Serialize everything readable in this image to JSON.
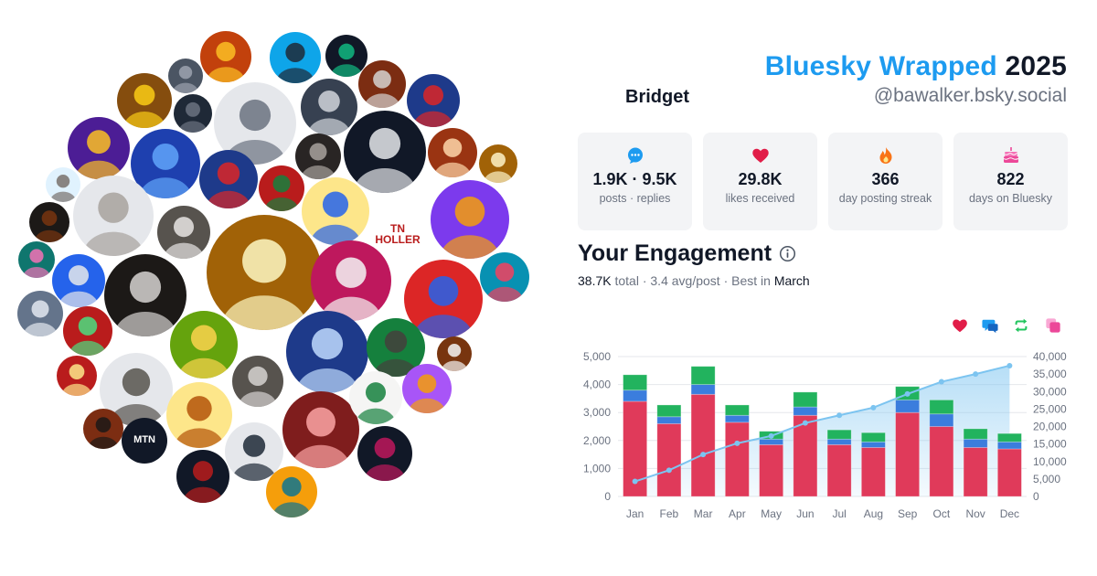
{
  "header": {
    "title_main": "Bluesky Wrapped",
    "title_year": "2025",
    "display_name": "Bridget",
    "handle": "@bawalker.bsky.social"
  },
  "avatar_cloud": {
    "avatars": [
      {
        "name": "avatar-pop-art-portrait",
        "bg": "#c2410c",
        "fg": "#fbbf24"
      },
      {
        "name": "avatar-woman-blue-sky",
        "bg": "#0ea5e9",
        "fg": "#1f2937"
      },
      {
        "name": "avatar-green-logo",
        "bg": "#111827",
        "fg": "#10b981"
      },
      {
        "name": "avatar-photo-dark",
        "bg": "#7c2d12",
        "fg": "#d6d3d1"
      },
      {
        "name": "avatar-man-sketch",
        "bg": "#4b5563",
        "fg": "#9ca3af"
      },
      {
        "name": "avatar-couple",
        "bg": "#854d0e",
        "fg": "#facc15"
      },
      {
        "name": "avatar-man-dark",
        "bg": "#1f2937",
        "fg": "#6b7280"
      },
      {
        "name": "avatar-politician",
        "bg": "#1e3a8a",
        "fg": "#dc2626"
      },
      {
        "name": "avatar-bw-portrait",
        "bg": "#e5e7eb",
        "fg": "#6b7280"
      },
      {
        "name": "avatar-man-hat",
        "bg": "#374151",
        "fg": "#d1d5db"
      },
      {
        "name": "avatar-bride-of-frankenstein",
        "bg": "#111827",
        "fg": "#e5e7eb"
      },
      {
        "name": "avatar-man-glasses",
        "bg": "#4c1d95",
        "fg": "#fbbf24"
      },
      {
        "name": "avatar-blue-portrait",
        "bg": "#1e40af",
        "fg": "#60a5fa"
      },
      {
        "name": "avatar-woman-dark",
        "bg": "#292524",
        "fg": "#a8a29e"
      },
      {
        "name": "avatar-man-smile",
        "bg": "#9a3412",
        "fg": "#fed7aa"
      },
      {
        "name": "avatar-cat",
        "bg": "#a16207",
        "fg": "#fef3c7"
      },
      {
        "name": "avatar-elder-man",
        "bg": "#e0f2fe",
        "fg": "#78716c"
      },
      {
        "name": "avatar-blonde-woman",
        "bg": "#e5e7eb",
        "fg": "#a8a29e"
      },
      {
        "name": "avatar-dead-logo-small",
        "bg": "#1e3a8a",
        "fg": "#dc2626"
      },
      {
        "name": "avatar-christmas",
        "bg": "#b91c1c",
        "fg": "#15803d"
      },
      {
        "name": "avatar-caricature",
        "bg": "#fde68a",
        "fg": "#2563eb"
      },
      {
        "name": "avatar-pride-dancer",
        "bg": "#7c3aed",
        "fg": "#f59e0b"
      },
      {
        "name": "avatar-bearded-man",
        "bg": "#1c1917",
        "fg": "#78350f"
      },
      {
        "name": "avatar-dog",
        "bg": "#57534e",
        "fg": "#e7e5e4"
      },
      {
        "name": "avatar-warrior-woman",
        "bg": "#a16207",
        "fg": "#fef9c3"
      },
      {
        "name": "avatar-tn-holler",
        "bg": "#ffffff",
        "fg": "#b91c1c",
        "text": "TN HOLLER"
      },
      {
        "name": "avatar-psychedelic-art",
        "bg": "#0f766e",
        "fg": "#f472b6"
      },
      {
        "name": "avatar-man-portrait",
        "bg": "#2563eb",
        "fg": "#e5e7eb"
      },
      {
        "name": "avatar-white-house",
        "bg": "#be185d",
        "fg": "#f5f5f4"
      },
      {
        "name": "avatar-steal-your-face",
        "bg": "#dc2626",
        "fg": "#2563eb"
      },
      {
        "name": "avatar-tie-dye-skull",
        "bg": "#0891b2",
        "fg": "#f43f5e"
      },
      {
        "name": "avatar-old-man",
        "bg": "#64748b",
        "fg": "#e2e8f0"
      },
      {
        "name": "avatar-actor",
        "bg": "#1c1917",
        "fg": "#d6d3d1"
      },
      {
        "name": "avatar-man-sunglasses",
        "bg": "#b91c1c",
        "fg": "#4ade80"
      },
      {
        "name": "avatar-bald-man",
        "bg": "#65a30d",
        "fg": "#fcd34d"
      },
      {
        "name": "avatar-ocean-wave",
        "bg": "#1e3a8a",
        "fg": "#bfdbfe"
      },
      {
        "name": "avatar-man-shades",
        "bg": "#15803d",
        "fg": "#44403c"
      },
      {
        "name": "avatar-rocker",
        "bg": "#78350f",
        "fg": "#f5f5f4"
      },
      {
        "name": "avatar-man-red-shirt",
        "bg": "#b91c1c",
        "fg": "#fde68a"
      },
      {
        "name": "avatar-older-man-gray",
        "bg": "#e5e7eb",
        "fg": "#57534e"
      },
      {
        "name": "avatar-woman-smiling",
        "bg": "#fde68a",
        "fg": "#b45309"
      },
      {
        "name": "avatar-poster-text",
        "bg": "#57534e",
        "fg": "#d6d3d1"
      },
      {
        "name": "avatar-bald-man-red",
        "bg": "#7f1d1d",
        "fg": "#fca5a5"
      },
      {
        "name": "avatar-fist-badge",
        "bg": "#f5f5f4",
        "fg": "#15803d"
      },
      {
        "name": "avatar-bearded-artist",
        "bg": "#a855f7",
        "fg": "#f59e0b"
      },
      {
        "name": "avatar-silhouette",
        "bg": "#7c2d12",
        "fg": "#1c1917"
      },
      {
        "name": "avatar-mtn",
        "bg": "#111827",
        "fg": "#ffffff",
        "text": "MTN"
      },
      {
        "name": "avatar-masks",
        "bg": "#e5e7eb",
        "fg": "#1f2937"
      },
      {
        "name": "avatar-woman-red",
        "bg": "#111827",
        "fg": "#be185d"
      },
      {
        "name": "avatar-guy-fawkes",
        "bg": "#111827",
        "fg": "#b91c1c"
      },
      {
        "name": "avatar-comic-woman",
        "bg": "#f59e0b",
        "fg": "#0e7490"
      },
      {
        "name": "avatar-cartoon-face",
        "bg": "#fde68a",
        "fg": "#1f2937"
      },
      {
        "name": "avatar-earth-hands",
        "bg": "#16a34a",
        "fg": "#2563eb"
      }
    ]
  },
  "stats": [
    {
      "name": "posts-replies-card",
      "icon": "speech-bubble-icon",
      "color": "#1d9bf0",
      "value": "1.9K · 9.5K",
      "label": "posts · replies"
    },
    {
      "name": "likes-received-card",
      "icon": "heart-icon",
      "color": "#e11d48",
      "value": "29.8K",
      "label": "likes received"
    },
    {
      "name": "posting-streak-card",
      "icon": "flame-icon",
      "color": "#f97316",
      "value": "366",
      "label": "day posting streak"
    },
    {
      "name": "days-on-bluesky-card",
      "icon": "cake-icon",
      "color": "#ec4899",
      "value": "822",
      "label": "days on Bluesky"
    }
  ],
  "engagement": {
    "title": "Your Engagement",
    "total": "38.7K",
    "total_suffix": "total ·",
    "avg": "3.4 avg/post",
    "best_prefix": "· Best in",
    "best_month": "March",
    "legend": [
      {
        "name": "likes-legend-icon",
        "icon": "heart-icon",
        "color": "#e11d48"
      },
      {
        "name": "replies-legend-icon",
        "icon": "reply-bubble-icon",
        "color": "#1d9bf0"
      },
      {
        "name": "reposts-legend-icon",
        "icon": "repost-icon",
        "color": "#22c55e"
      },
      {
        "name": "quotes-legend-icon",
        "icon": "quote-icon",
        "color": "#ec4899"
      }
    ]
  },
  "chart_data": {
    "type": "bar",
    "categories": [
      "Jan",
      "Feb",
      "Mar",
      "Apr",
      "May",
      "Jun",
      "Jul",
      "Aug",
      "Sep",
      "Oct",
      "Nov",
      "Dec"
    ],
    "series": [
      {
        "key": "likes",
        "color": "#e03a5a",
        "values": [
          3400,
          2600,
          3650,
          2650,
          1850,
          2900,
          1850,
          1750,
          3000,
          2500,
          1750,
          1700
        ]
      },
      {
        "key": "replies",
        "color": "#3b7ddd",
        "values": [
          400,
          250,
          350,
          250,
          200,
          300,
          200,
          200,
          450,
          450,
          300,
          250
        ]
      },
      {
        "key": "reposts",
        "color": "#22b35e",
        "values": [
          550,
          420,
          650,
          370,
          280,
          530,
          330,
          330,
          480,
          500,
          370,
          300
        ]
      }
    ],
    "cumulative": {
      "axis": "right",
      "values": [
        4300,
        7500,
        12000,
        15200,
        17300,
        21000,
        23200,
        25400,
        29300,
        32800,
        35000,
        37400
      ]
    },
    "ylim": [
      0,
      5000
    ],
    "yticks": [
      "0",
      "1,000",
      "2,000",
      "3,000",
      "4,000",
      "5,000"
    ],
    "y2lim": [
      0,
      40000
    ],
    "y2ticks": [
      "0",
      "5,000",
      "10,000",
      "15,000",
      "20,000",
      "25,000",
      "30,000",
      "35,000",
      "40,000"
    ],
    "grid": true
  }
}
